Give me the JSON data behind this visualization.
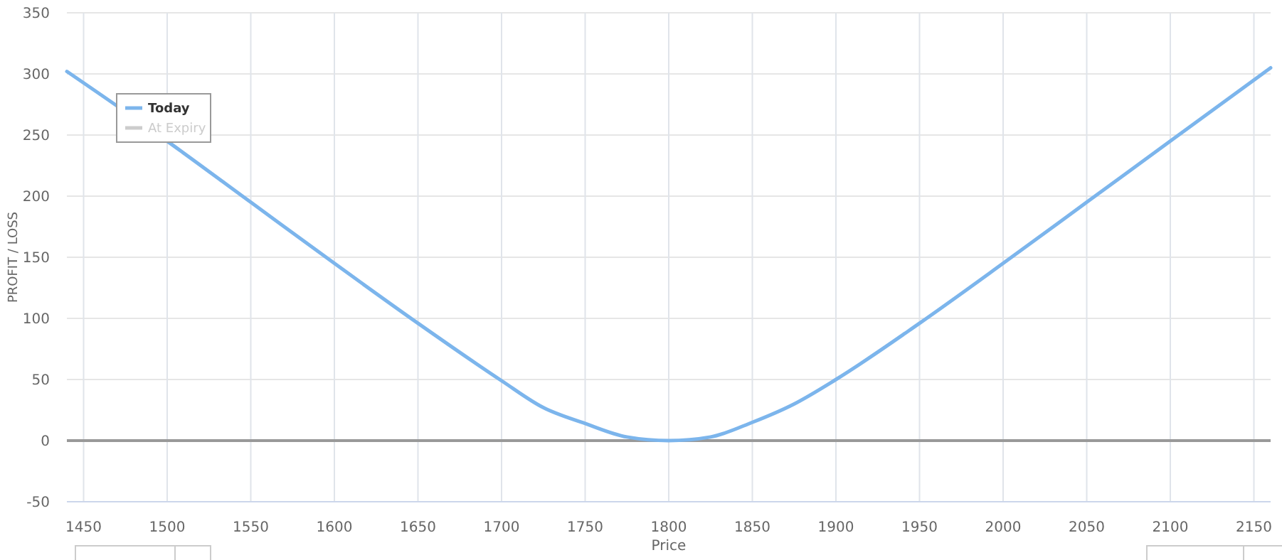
{
  "chart_data": {
    "type": "line",
    "xlabel": "Price",
    "ylabel": "PROFIT / LOSS",
    "x": [
      1440,
      1500,
      1550,
      1600,
      1650,
      1700,
      1725,
      1750,
      1775,
      1800,
      1825,
      1850,
      1875,
      1900,
      1950,
      2000,
      2050,
      2100,
      2160
    ],
    "series": [
      {
        "name": "Today",
        "color": "#7cb5ec",
        "values": [
          302,
          245,
          195,
          145,
          96,
          49,
          27,
          14,
          3,
          0,
          3,
          15,
          30,
          50,
          96,
          145,
          195,
          245,
          305
        ]
      },
      {
        "name": "At Expiry",
        "color": "#cccccc",
        "values": [
          null,
          null,
          null,
          null,
          null,
          null,
          null,
          null,
          null,
          null,
          null,
          null,
          null,
          null,
          null,
          null,
          null,
          null,
          null
        ]
      }
    ],
    "xlim": [
      1440,
      2160
    ],
    "xticks": [
      1450,
      1500,
      1550,
      1600,
      1650,
      1700,
      1750,
      1800,
      1850,
      1900,
      1950,
      2000,
      2050,
      2100,
      2150
    ],
    "ylim": [
      -50,
      350
    ],
    "yticks": [
      -50,
      0,
      50,
      100,
      150,
      200,
      250,
      300,
      350
    ],
    "ref_lines": [
      {
        "axis": "y",
        "value": 0,
        "color": "#999999"
      }
    ],
    "grid": true,
    "legend": "top left",
    "marker": "none",
    "line_style": "solid"
  }
}
